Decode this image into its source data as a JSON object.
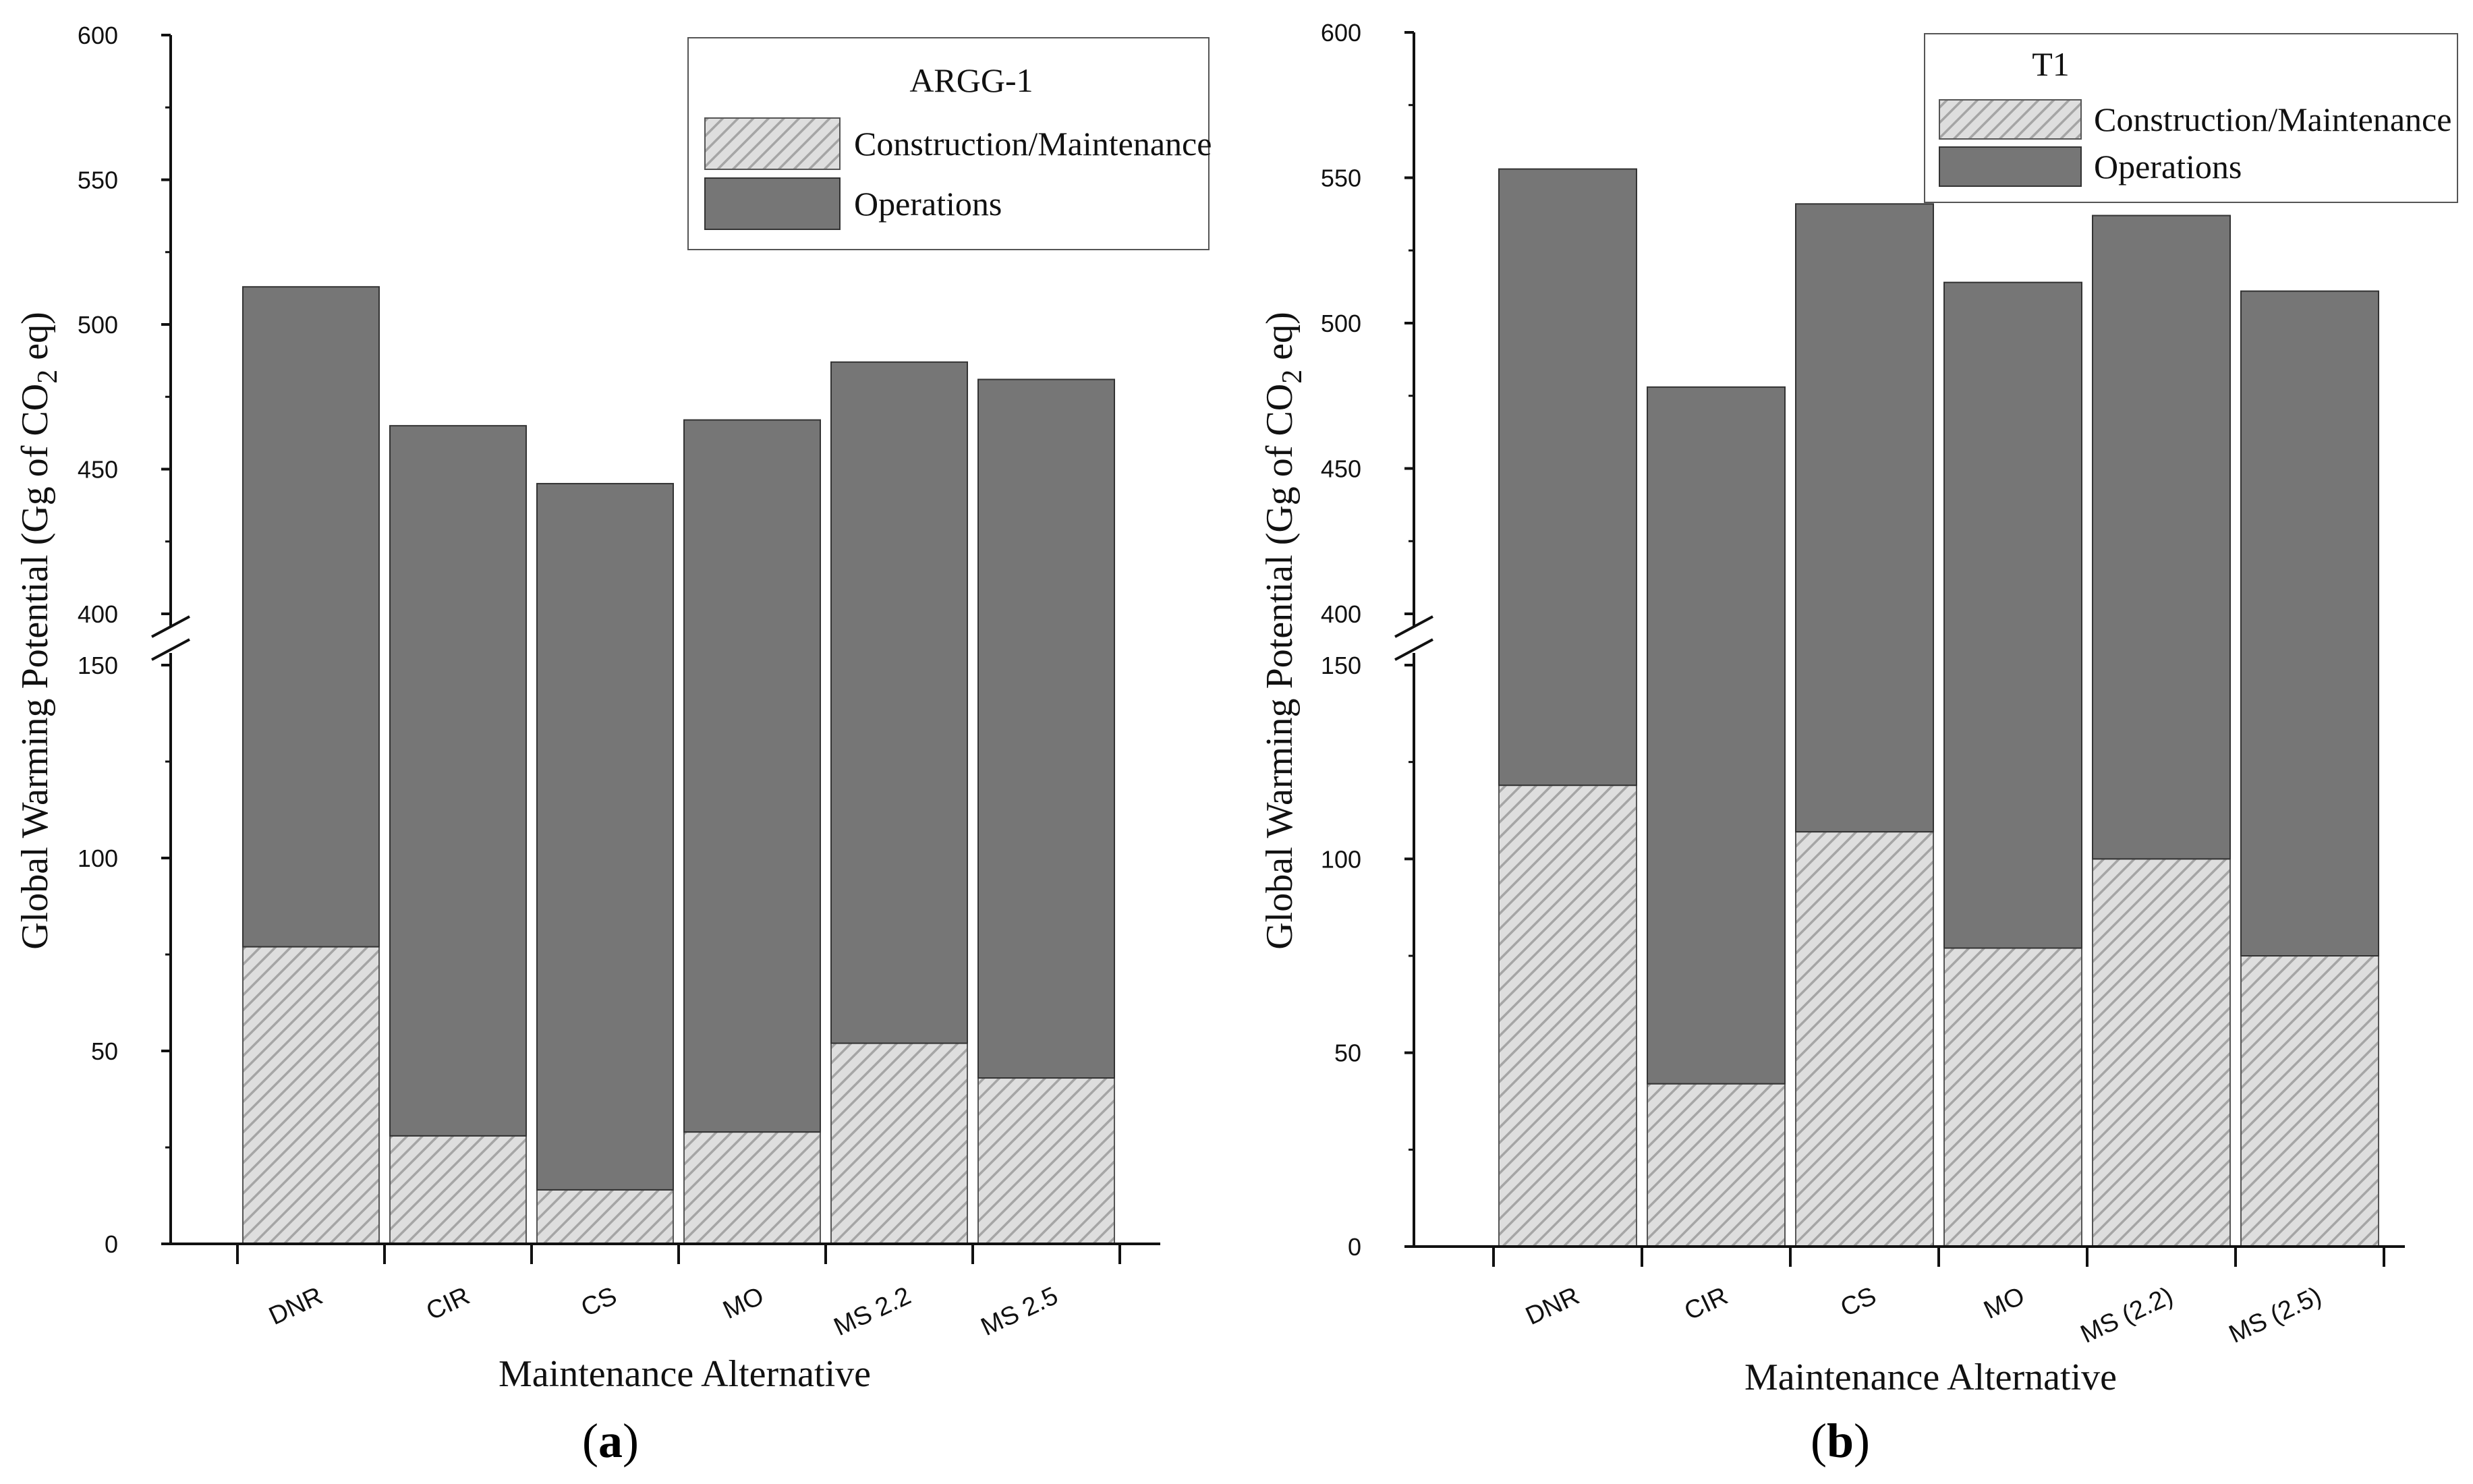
{
  "chart_data": [
    {
      "type": "bar",
      "stacked": true,
      "panel_label": "(a)",
      "panel_letter": "a",
      "legend_title": "ARGG-1",
      "categories": [
        "DNR",
        "CIR",
        "CS",
        "MO",
        "MS 2.2",
        "MS 2.5"
      ],
      "series": [
        {
          "name": "Construction/Maintenance",
          "values": [
            77,
            28,
            14,
            29,
            52,
            43
          ]
        },
        {
          "name": "Operations",
          "values": [
            436,
            437,
            431,
            438,
            435,
            438
          ]
        }
      ],
      "totals": [
        513,
        465,
        445,
        467,
        487,
        481
      ],
      "xlabel": "Maintenance Alternative",
      "ylabel": "Global Warming Potential (Gg of CO",
      "ylabel_sub": "2",
      "ylabel_suffix": " eq)",
      "axis_break": {
        "lower_range": [
          0,
          150
        ],
        "upper_range": [
          400,
          600
        ]
      },
      "ylim": [
        0,
        600
      ],
      "yticks_lower": [
        0,
        50,
        100,
        150
      ],
      "yticks_upper": [
        400,
        450,
        500,
        550,
        600
      ],
      "legend_position": "top-right",
      "grid": false
    },
    {
      "type": "bar",
      "stacked": true,
      "panel_label": "(b)",
      "panel_letter": "b",
      "legend_title": "T1",
      "categories": [
        "DNR",
        "CIR",
        "CS",
        "MO",
        "MS (2.2)",
        "MS (2.5)"
      ],
      "series": [
        {
          "name": "Construction/Maintenance",
          "values": [
            119,
            42,
            107,
            77,
            100,
            75
          ]
        },
        {
          "name": "Operations",
          "values": [
            434,
            436,
            434,
            437,
            437,
            436
          ]
        }
      ],
      "totals": [
        553,
        478,
        541,
        514,
        537,
        511
      ],
      "xlabel": "Maintenance Alternative",
      "ylabel": "Global Warming Potential (Gg of CO",
      "ylabel_sub": "2",
      "ylabel_suffix": " eq)",
      "axis_break": {
        "lower_range": [
          0,
          150
        ],
        "upper_range": [
          400,
          600
        ]
      },
      "ylim": [
        0,
        600
      ],
      "yticks_lower": [
        0,
        50,
        100,
        150
      ],
      "yticks_upper": [
        400,
        450,
        500,
        550,
        600
      ],
      "legend_position": "top-right",
      "grid": false
    }
  ],
  "colors": {
    "operations": "#767676",
    "construction_bg": "#dedede",
    "construction_hatch": "#9a9a9a",
    "axis": "#111111"
  }
}
